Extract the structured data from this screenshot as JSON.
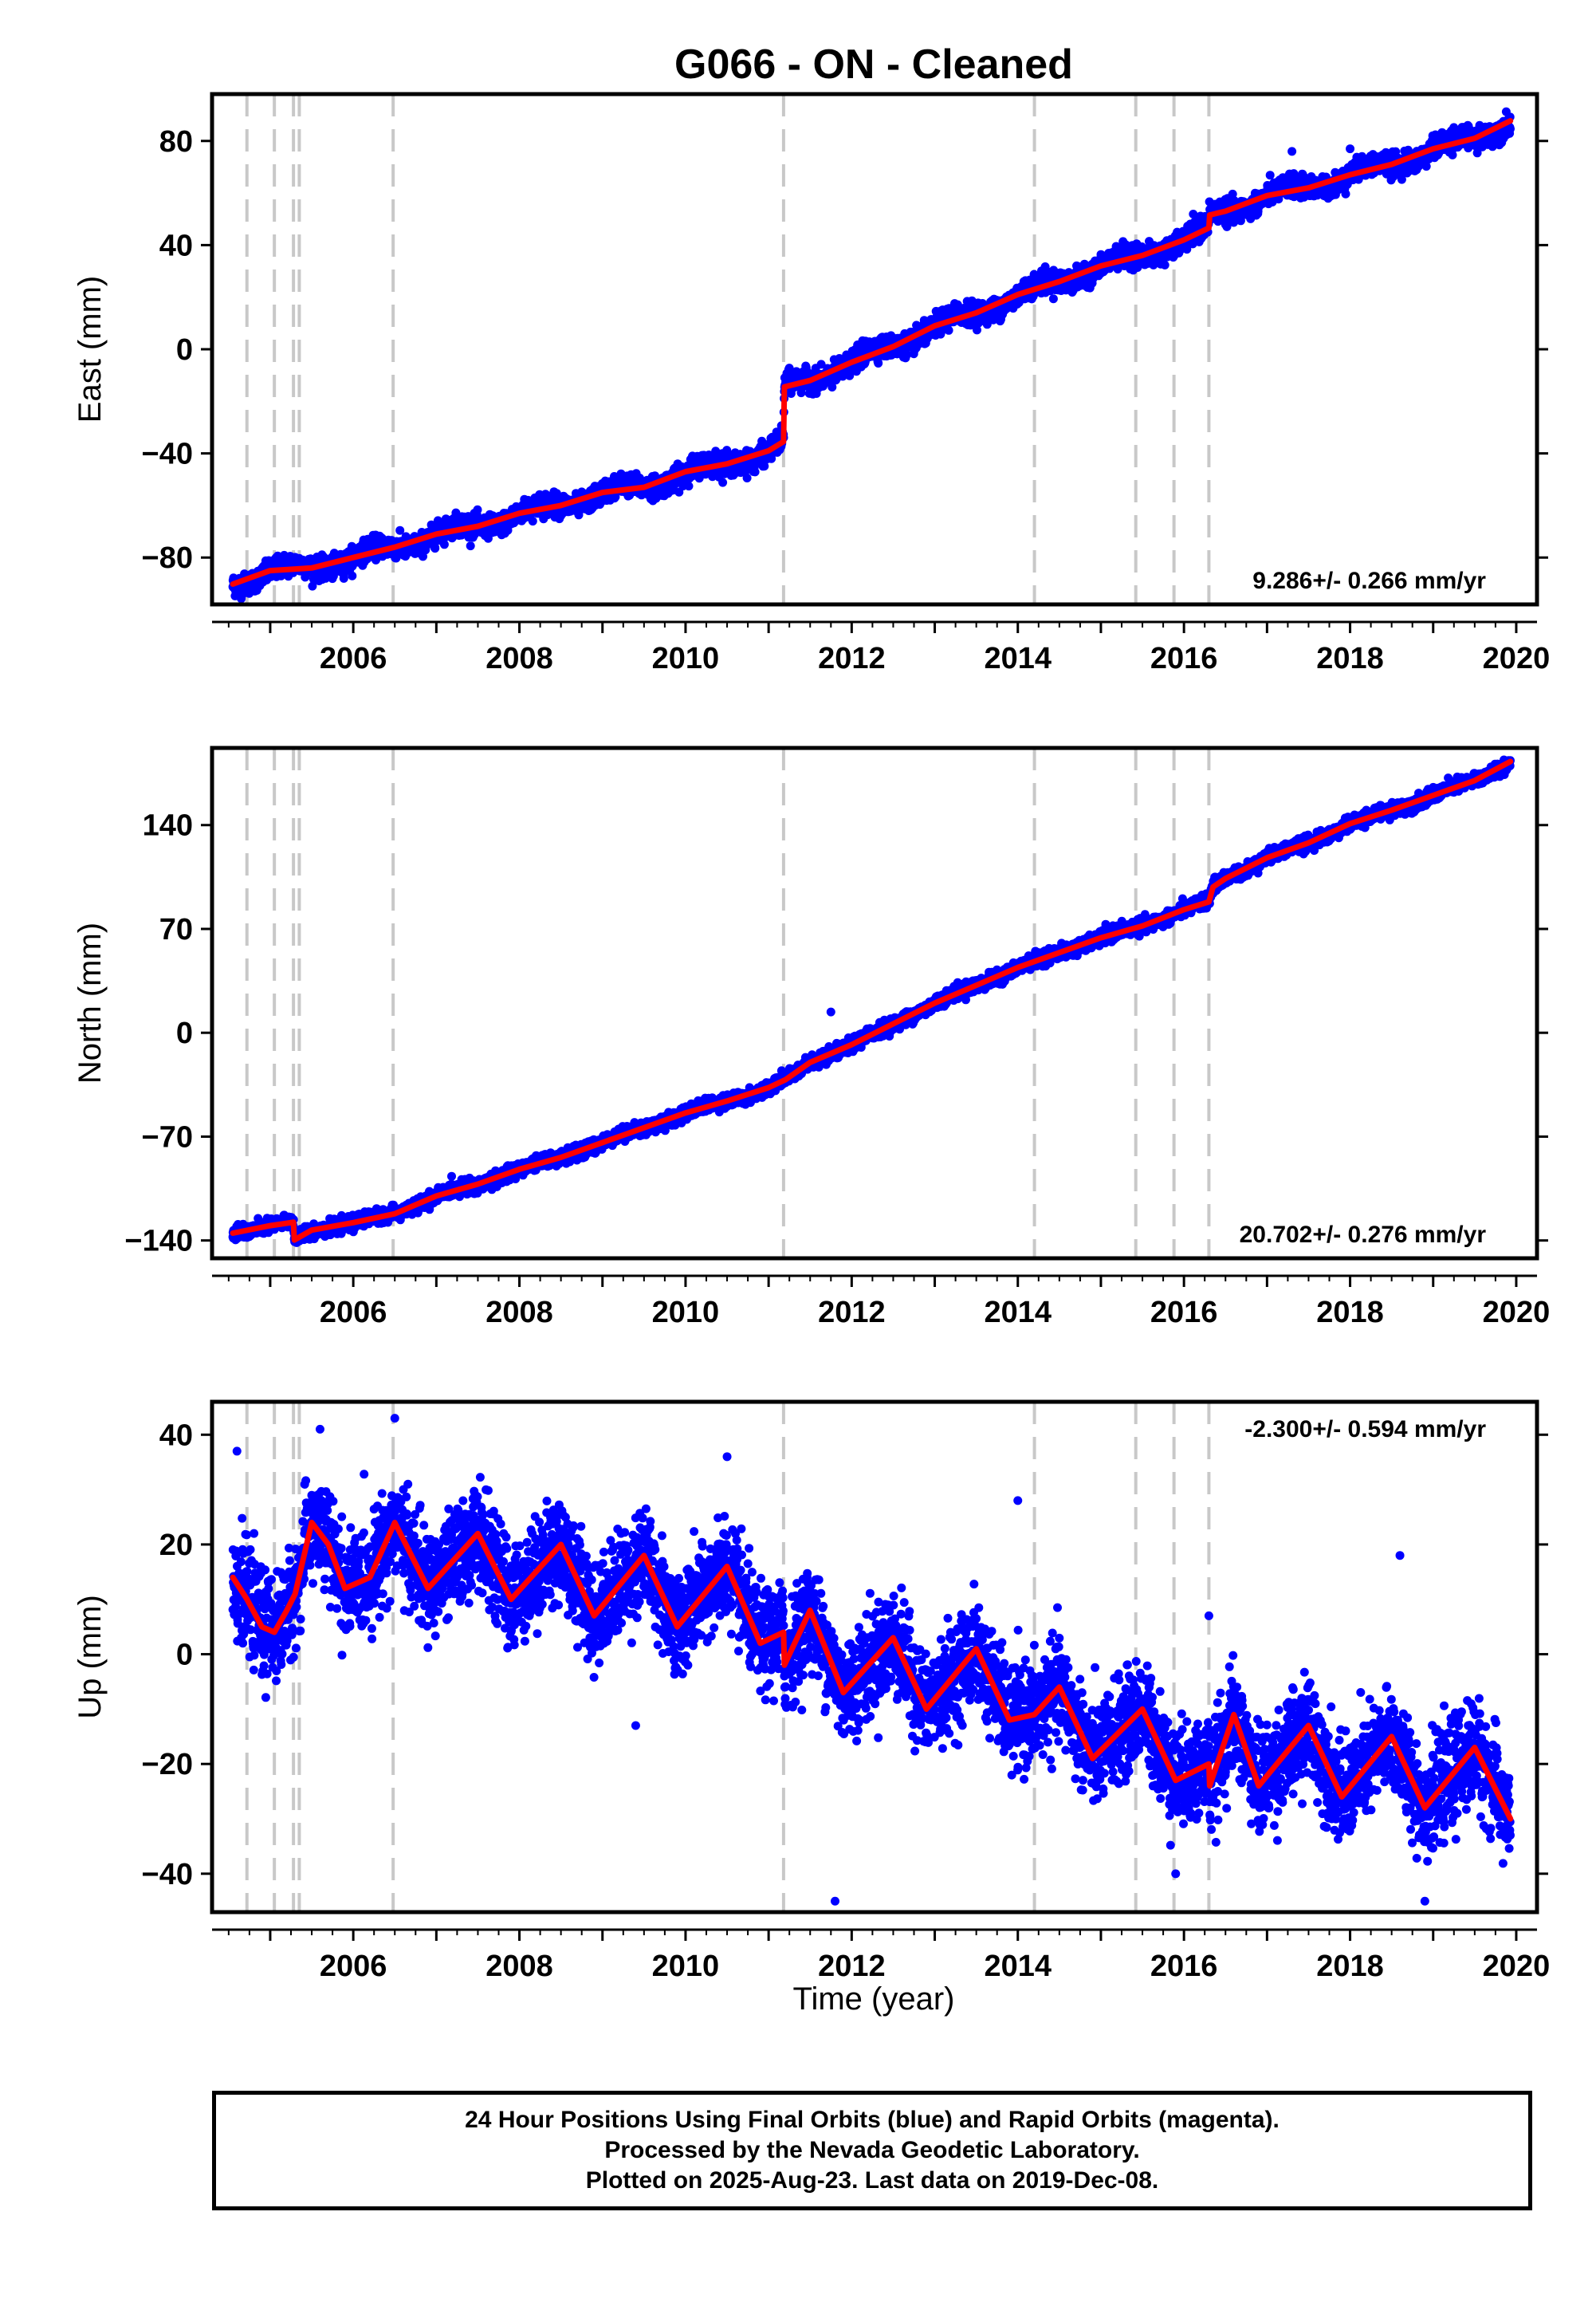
{
  "figure": {
    "title": "G066  - ON - Cleaned",
    "x_axis_label": "Time (year)"
  },
  "footer": {
    "line1": "24 Hour Positions Using Final Orbits (blue) and Rapid Orbits (magenta).",
    "line2": "Processed by the Nevada Geodetic Laboratory.",
    "line3": "Plotted on 2025-Aug-23. Last data on 2019-Dec-08."
  },
  "colors": {
    "points": "#0000ff",
    "model": "#ff0000",
    "breaks": "#c8c8c8",
    "frame": "#000000"
  },
  "chart_data": [
    {
      "type": "scatter",
      "name": "East",
      "ylabel": "East (mm)",
      "xlim": [
        2004.3,
        2020.25
      ],
      "ylim": [
        -98,
        98
      ],
      "xticks": [
        2006,
        2008,
        2010,
        2012,
        2014,
        2016,
        2018,
        2020
      ],
      "yticks": [
        -80,
        -40,
        0,
        40,
        80
      ],
      "rate_label": "9.286+/- 0.266 mm/yr",
      "rate_position": "bottom-right",
      "data_range": [
        2004.55,
        2019.93
      ],
      "trend": [
        [
          2004.55,
          -90
        ],
        [
          2005.0,
          -85
        ],
        [
          2005.5,
          -84
        ],
        [
          2006.0,
          -80
        ],
        [
          2006.5,
          -76
        ],
        [
          2007.0,
          -71
        ],
        [
          2007.5,
          -68
        ],
        [
          2008.0,
          -63
        ],
        [
          2008.5,
          -60
        ],
        [
          2009.0,
          -55
        ],
        [
          2009.5,
          -53
        ],
        [
          2010.0,
          -47
        ],
        [
          2010.5,
          -44
        ],
        [
          2011.0,
          -39
        ],
        [
          2011.18,
          -36
        ],
        [
          2011.19,
          -15
        ],
        [
          2011.5,
          -12
        ],
        [
          2012.0,
          -5
        ],
        [
          2012.5,
          1
        ],
        [
          2013.0,
          9
        ],
        [
          2013.5,
          14
        ],
        [
          2014.0,
          21
        ],
        [
          2014.5,
          26
        ],
        [
          2015.0,
          32
        ],
        [
          2015.5,
          36
        ],
        [
          2016.0,
          42
        ],
        [
          2016.3,
          46
        ],
        [
          2016.31,
          51
        ],
        [
          2016.5,
          53
        ],
        [
          2017.0,
          59
        ],
        [
          2017.5,
          62
        ],
        [
          2018.0,
          67
        ],
        [
          2018.5,
          71
        ],
        [
          2019.0,
          77
        ],
        [
          2019.5,
          81
        ],
        [
          2019.93,
          88
        ]
      ],
      "seasonal_amplitude": 2.0,
      "noise_sd": 2.0,
      "outliers": [
        [
          2017.3,
          76
        ],
        [
          2018.0,
          77
        ]
      ],
      "breaks": [
        2004.72,
        2005.05,
        2005.28,
        2005.35,
        2006.48,
        2011.18,
        2014.2,
        2015.42,
        2015.88,
        2016.3
      ]
    },
    {
      "type": "scatter",
      "name": "North",
      "ylabel": "North (mm)",
      "xlim": [
        2004.3,
        2020.25
      ],
      "ylim": [
        -152,
        192
      ],
      "xticks": [
        2006,
        2008,
        2010,
        2012,
        2014,
        2016,
        2018,
        2020
      ],
      "yticks": [
        -140,
        -70,
        0,
        70,
        140
      ],
      "rate_label": "20.702+/- 0.276 mm/yr",
      "rate_position": "bottom-right",
      "data_range": [
        2004.55,
        2019.93
      ],
      "trend": [
        [
          2004.55,
          -135
        ],
        [
          2005.0,
          -130
        ],
        [
          2005.28,
          -128
        ],
        [
          2005.29,
          -140
        ],
        [
          2005.5,
          -133
        ],
        [
          2006.0,
          -128
        ],
        [
          2006.5,
          -122
        ],
        [
          2007.0,
          -110
        ],
        [
          2007.5,
          -102
        ],
        [
          2008.0,
          -92
        ],
        [
          2008.5,
          -84
        ],
        [
          2009.0,
          -74
        ],
        [
          2009.5,
          -64
        ],
        [
          2010.0,
          -54
        ],
        [
          2010.5,
          -46
        ],
        [
          2011.0,
          -37
        ],
        [
          2011.2,
          -32
        ],
        [
          2011.5,
          -20
        ],
        [
          2012.0,
          -8
        ],
        [
          2012.5,
          6
        ],
        [
          2013.0,
          20
        ],
        [
          2013.5,
          32
        ],
        [
          2014.0,
          44
        ],
        [
          2014.5,
          54
        ],
        [
          2015.0,
          64
        ],
        [
          2015.5,
          72
        ],
        [
          2016.0,
          83
        ],
        [
          2016.3,
          88
        ],
        [
          2016.35,
          98
        ],
        [
          2016.5,
          104
        ],
        [
          2017.0,
          118
        ],
        [
          2017.5,
          128
        ],
        [
          2018.0,
          141
        ],
        [
          2018.5,
          150
        ],
        [
          2019.0,
          160
        ],
        [
          2019.5,
          170
        ],
        [
          2019.93,
          183
        ]
      ],
      "seasonal_amplitude": 1.0,
      "noise_sd": 2.2,
      "outliers": [
        [
          2011.75,
          14
        ]
      ],
      "breaks": [
        2004.72,
        2005.05,
        2005.28,
        2005.35,
        2006.48,
        2011.18,
        2014.2,
        2015.42,
        2015.88,
        2016.3
      ]
    },
    {
      "type": "scatter",
      "name": "Up",
      "ylabel": "Up (mm)",
      "xlim": [
        2004.3,
        2020.25
      ],
      "ylim": [
        -47,
        46
      ],
      "xticks": [
        2006,
        2008,
        2010,
        2012,
        2014,
        2016,
        2018,
        2020
      ],
      "yticks": [
        -40,
        -20,
        0,
        20,
        40
      ],
      "rate_label": "-2.300+/- 0.594 mm/yr",
      "rate_position": "top-right",
      "data_range": [
        2004.55,
        2019.93
      ],
      "trend": [
        [
          2004.55,
          14
        ],
        [
          2004.72,
          10
        ],
        [
          2004.9,
          5
        ],
        [
          2005.05,
          4
        ],
        [
          2005.2,
          8
        ],
        [
          2005.3,
          11
        ],
        [
          2005.5,
          24
        ],
        [
          2005.7,
          20
        ],
        [
          2005.9,
          12
        ],
        [
          2006.2,
          14
        ],
        [
          2006.5,
          24
        ],
        [
          2006.9,
          12
        ],
        [
          2007.5,
          22
        ],
        [
          2007.9,
          10
        ],
        [
          2008.5,
          20
        ],
        [
          2008.9,
          7
        ],
        [
          2009.5,
          18
        ],
        [
          2009.9,
          5
        ],
        [
          2010.5,
          16
        ],
        [
          2010.9,
          2
        ],
        [
          2011.18,
          4
        ],
        [
          2011.19,
          -2
        ],
        [
          2011.5,
          8
        ],
        [
          2011.9,
          -7
        ],
        [
          2012.5,
          3
        ],
        [
          2012.9,
          -10
        ],
        [
          2013.5,
          1
        ],
        [
          2013.9,
          -12
        ],
        [
          2014.2,
          -11
        ],
        [
          2014.5,
          -6
        ],
        [
          2014.9,
          -19
        ],
        [
          2015.5,
          -10
        ],
        [
          2015.9,
          -23
        ],
        [
          2016.3,
          -20
        ],
        [
          2016.31,
          -24
        ],
        [
          2016.6,
          -11
        ],
        [
          2016.9,
          -24
        ],
        [
          2017.5,
          -13
        ],
        [
          2017.9,
          -26
        ],
        [
          2018.5,
          -15
        ],
        [
          2018.9,
          -28
        ],
        [
          2019.5,
          -17
        ],
        [
          2019.93,
          -30
        ]
      ],
      "seasonal_amplitude": 0,
      "noise_sd": 4.5,
      "outliers": [
        [
          2004.6,
          37
        ],
        [
          2005.6,
          41
        ],
        [
          2006.5,
          43
        ],
        [
          2009.4,
          -13
        ],
        [
          2010.5,
          36
        ],
        [
          2011.8,
          -45
        ],
        [
          2014.0,
          28
        ],
        [
          2016.3,
          7
        ],
        [
          2018.6,
          18
        ],
        [
          2018.9,
          -45
        ],
        [
          2015.9,
          -40
        ]
      ],
      "breaks": [
        2004.72,
        2005.05,
        2005.28,
        2005.35,
        2006.48,
        2011.18,
        2014.2,
        2015.42,
        2015.88,
        2016.3
      ]
    }
  ]
}
